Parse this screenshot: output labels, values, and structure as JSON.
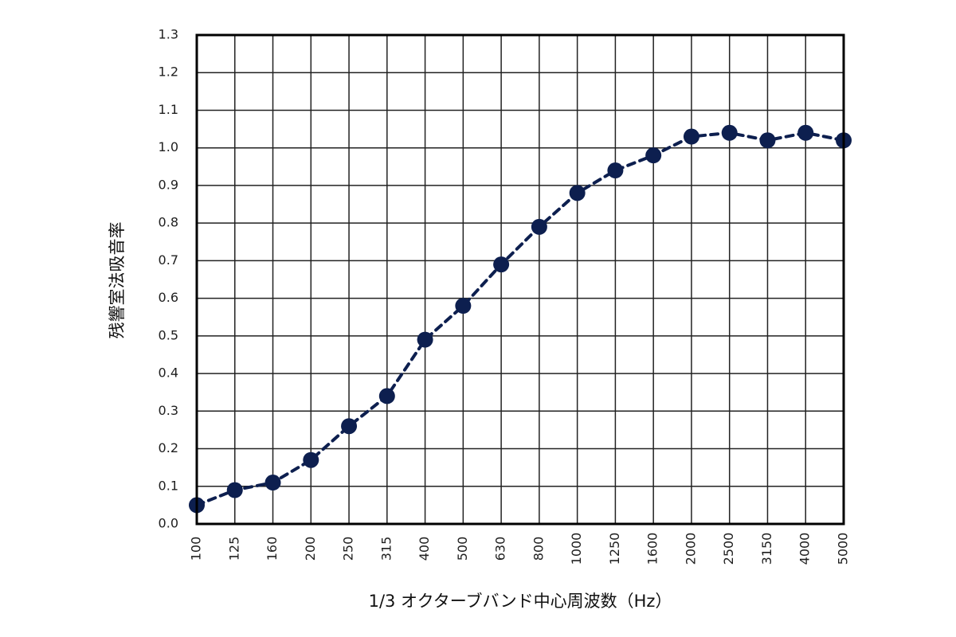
{
  "chart_data": {
    "type": "line",
    "title": "",
    "xlabel": "1/3 オクターブバンド中心周波数（Hz）",
    "ylabel": "残響室法吸音率",
    "categories": [
      "100",
      "125",
      "160",
      "200",
      "250",
      "315",
      "400",
      "500",
      "630",
      "800",
      "1000",
      "1250",
      "1600",
      "2000",
      "2500",
      "3150",
      "4000",
      "5000"
    ],
    "series": [
      {
        "values": [
          0.05,
          0.09,
          0.11,
          0.17,
          0.26,
          0.34,
          0.49,
          0.58,
          0.69,
          0.79,
          0.88,
          0.94,
          0.98,
          1.03,
          1.04,
          1.02,
          1.04,
          1.02
        ]
      }
    ],
    "ylim": [
      0.0,
      1.3
    ],
    "yticks": [
      "0.0",
      "0.1",
      "0.2",
      "0.3",
      "0.4",
      "0.5",
      "0.6",
      "0.7",
      "0.8",
      "0.9",
      "1.0",
      "1.1",
      "1.2",
      "1.3"
    ],
    "grid": true,
    "legend": "none",
    "colors": {
      "series": "#0d1f4f",
      "grid": "#222222",
      "frame": "#000000"
    }
  }
}
